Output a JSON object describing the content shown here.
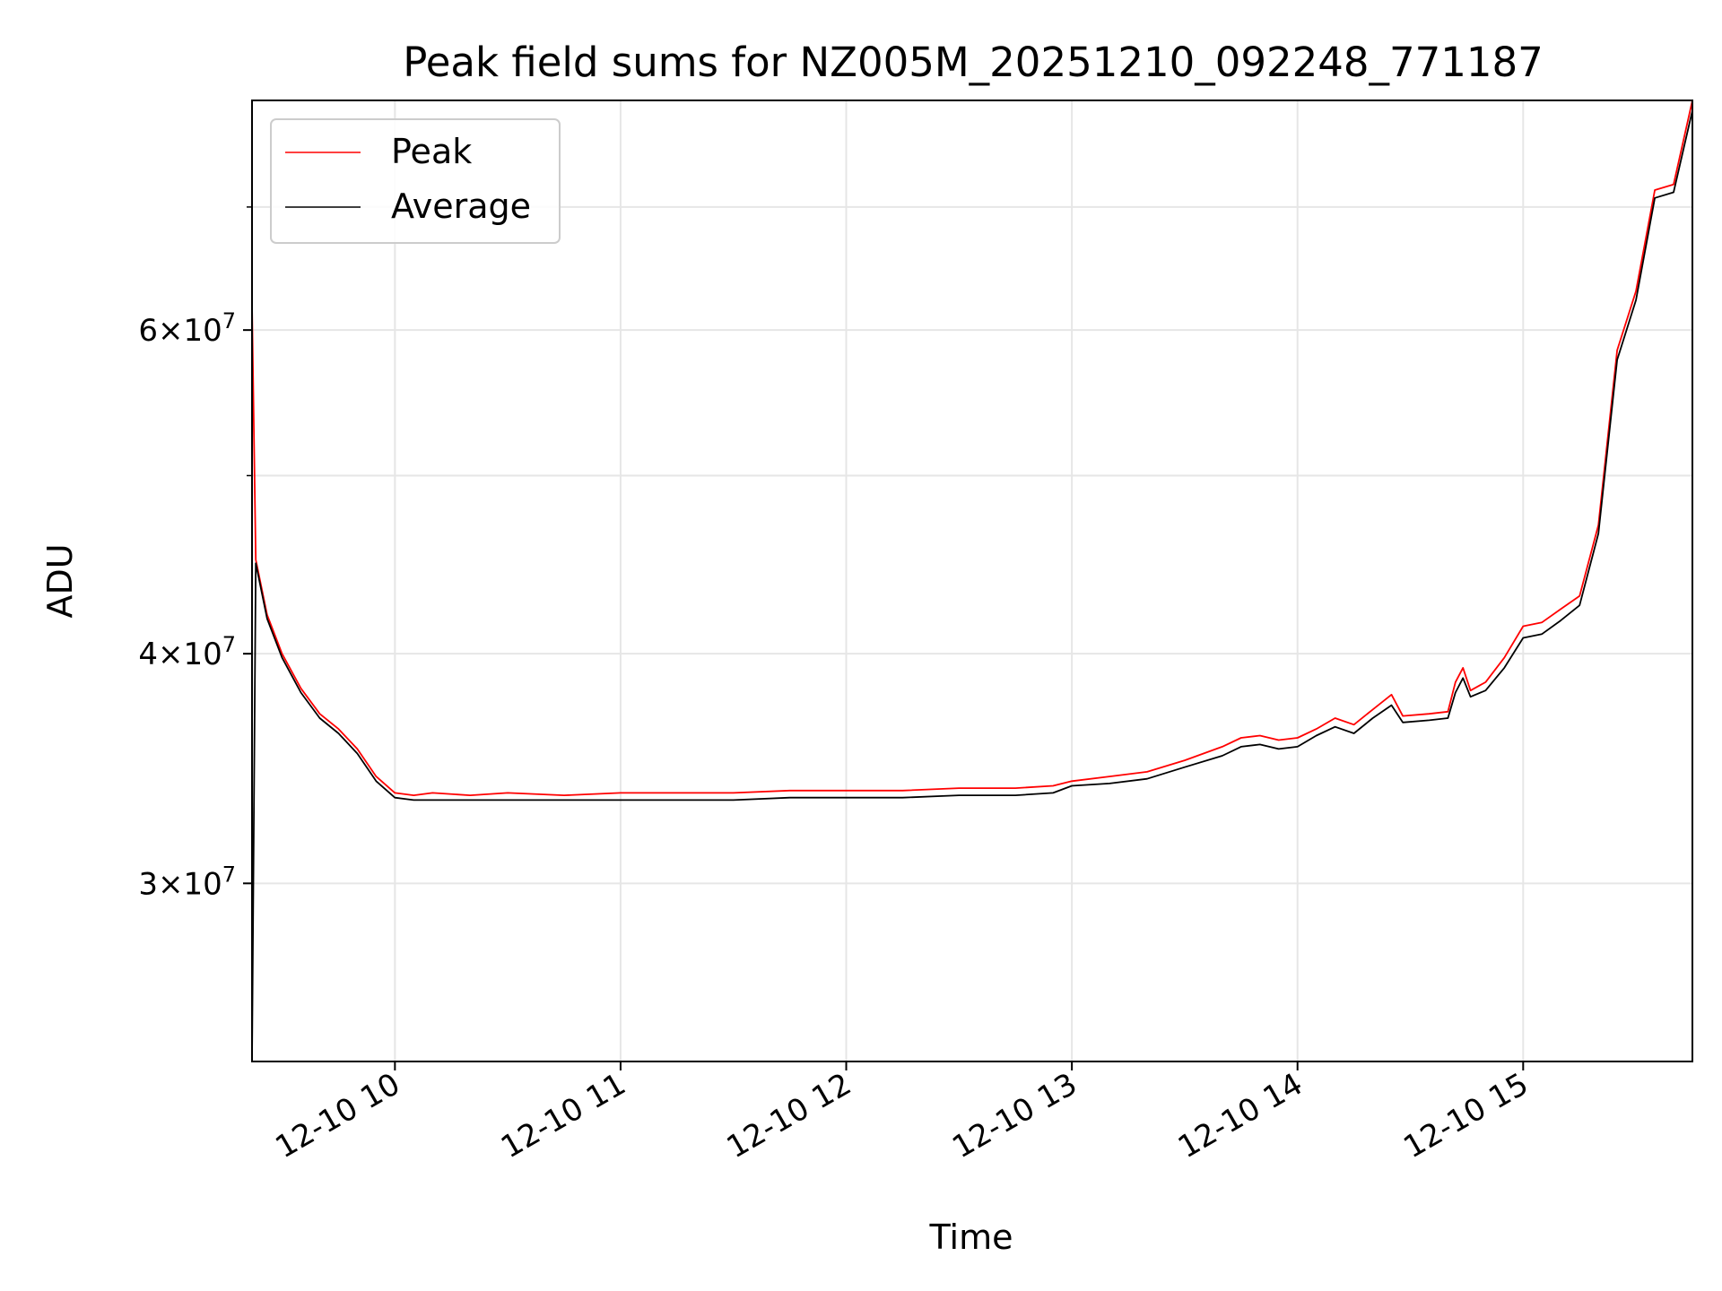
{
  "chart_data": {
    "type": "line",
    "title": "Peak field sums for NZ005M_20251210_092248_771187",
    "xlabel": "Time",
    "ylabel": "ADU",
    "x_scale": "time",
    "y_scale": "log",
    "xlim": [
      "2025-12-10 09:22",
      "2025-12-10 15:45"
    ],
    "ylim": [
      24000000,
      80000000
    ],
    "grid": true,
    "legend_position": "upper-left",
    "x_ticks": [
      {
        "value": "2025-12-10 10:00",
        "label": "12-10 10"
      },
      {
        "value": "2025-12-10 11:00",
        "label": "12-10 11"
      },
      {
        "value": "2025-12-10 12:00",
        "label": "12-10 12"
      },
      {
        "value": "2025-12-10 13:00",
        "label": "12-10 13"
      },
      {
        "value": "2025-12-10 14:00",
        "label": "12-10 14"
      },
      {
        "value": "2025-12-10 15:00",
        "label": "12-10 15"
      }
    ],
    "y_ticks": [
      {
        "value": 30000000,
        "mantissa": "3",
        "base": "10",
        "exponent": "7"
      },
      {
        "value": 40000000,
        "mantissa": "4",
        "base": "10",
        "exponent": "7"
      },
      {
        "value": 60000000,
        "mantissa": "6",
        "base": "10",
        "exponent": "7"
      }
    ],
    "y_minor_ticks": [
      50000000,
      70000000
    ],
    "series": [
      {
        "name": "Peak",
        "color": "#ff0000",
        "points": [
          [
            "2025-12-10 09:22",
            62000000
          ],
          [
            "2025-12-10 09:23",
            45000000
          ],
          [
            "2025-12-10 09:26",
            42000000
          ],
          [
            "2025-12-10 09:30",
            40000000
          ],
          [
            "2025-12-10 09:35",
            38300000
          ],
          [
            "2025-12-10 09:40",
            37100000
          ],
          [
            "2025-12-10 09:45",
            36400000
          ],
          [
            "2025-12-10 09:50",
            35500000
          ],
          [
            "2025-12-10 09:55",
            34300000
          ],
          [
            "2025-12-10 10:00",
            33600000
          ],
          [
            "2025-12-10 10:05",
            33500000
          ],
          [
            "2025-12-10 10:10",
            33600000
          ],
          [
            "2025-12-10 10:20",
            33500000
          ],
          [
            "2025-12-10 10:30",
            33600000
          ],
          [
            "2025-12-10 10:45",
            33500000
          ],
          [
            "2025-12-10 11:00",
            33600000
          ],
          [
            "2025-12-10 11:15",
            33600000
          ],
          [
            "2025-12-10 11:30",
            33600000
          ],
          [
            "2025-12-10 11:45",
            33700000
          ],
          [
            "2025-12-10 12:00",
            33700000
          ],
          [
            "2025-12-10 12:15",
            33700000
          ],
          [
            "2025-12-10 12:30",
            33800000
          ],
          [
            "2025-12-10 12:45",
            33800000
          ],
          [
            "2025-12-10 12:55",
            33900000
          ],
          [
            "2025-12-10 13:00",
            34100000
          ],
          [
            "2025-12-10 13:10",
            34300000
          ],
          [
            "2025-12-10 13:20",
            34500000
          ],
          [
            "2025-12-10 13:30",
            35000000
          ],
          [
            "2025-12-10 13:40",
            35600000
          ],
          [
            "2025-12-10 13:45",
            36000000
          ],
          [
            "2025-12-10 13:50",
            36100000
          ],
          [
            "2025-12-10 13:55",
            35900000
          ],
          [
            "2025-12-10 14:00",
            36000000
          ],
          [
            "2025-12-10 14:05",
            36400000
          ],
          [
            "2025-12-10 14:10",
            36900000
          ],
          [
            "2025-12-10 14:15",
            36600000
          ],
          [
            "2025-12-10 14:20",
            37300000
          ],
          [
            "2025-12-10 14:25",
            38000000
          ],
          [
            "2025-12-10 14:28",
            37000000
          ],
          [
            "2025-12-10 14:35",
            37100000
          ],
          [
            "2025-12-10 14:40",
            37200000
          ],
          [
            "2025-12-10 14:42",
            38600000
          ],
          [
            "2025-12-10 14:44",
            39300000
          ],
          [
            "2025-12-10 14:46",
            38200000
          ],
          [
            "2025-12-10 14:50",
            38600000
          ],
          [
            "2025-12-10 14:55",
            39800000
          ],
          [
            "2025-12-10 15:00",
            41400000
          ],
          [
            "2025-12-10 15:05",
            41600000
          ],
          [
            "2025-12-10 15:10",
            42300000
          ],
          [
            "2025-12-10 15:15",
            43000000
          ],
          [
            "2025-12-10 15:20",
            47000000
          ],
          [
            "2025-12-10 15:25",
            58500000
          ],
          [
            "2025-12-10 15:30",
            63000000
          ],
          [
            "2025-12-10 15:35",
            71500000
          ],
          [
            "2025-12-10 15:40",
            72000000
          ],
          [
            "2025-12-10 15:45",
            80000000
          ]
        ]
      },
      {
        "name": "Average",
        "color": "#000000",
        "points": [
          [
            "2025-12-10 09:22",
            24000000
          ],
          [
            "2025-12-10 09:23",
            44800000
          ],
          [
            "2025-12-10 09:26",
            41800000
          ],
          [
            "2025-12-10 09:30",
            39800000
          ],
          [
            "2025-12-10 09:35",
            38100000
          ],
          [
            "2025-12-10 09:40",
            36900000
          ],
          [
            "2025-12-10 09:45",
            36200000
          ],
          [
            "2025-12-10 09:50",
            35300000
          ],
          [
            "2025-12-10 09:55",
            34100000
          ],
          [
            "2025-12-10 10:00",
            33400000
          ],
          [
            "2025-12-10 10:05",
            33300000
          ],
          [
            "2025-12-10 10:10",
            33300000
          ],
          [
            "2025-12-10 10:20",
            33300000
          ],
          [
            "2025-12-10 10:30",
            33300000
          ],
          [
            "2025-12-10 10:45",
            33300000
          ],
          [
            "2025-12-10 11:00",
            33300000
          ],
          [
            "2025-12-10 11:15",
            33300000
          ],
          [
            "2025-12-10 11:30",
            33300000
          ],
          [
            "2025-12-10 11:45",
            33400000
          ],
          [
            "2025-12-10 12:00",
            33400000
          ],
          [
            "2025-12-10 12:15",
            33400000
          ],
          [
            "2025-12-10 12:30",
            33500000
          ],
          [
            "2025-12-10 12:45",
            33500000
          ],
          [
            "2025-12-10 12:55",
            33600000
          ],
          [
            "2025-12-10 13:00",
            33900000
          ],
          [
            "2025-12-10 13:10",
            34000000
          ],
          [
            "2025-12-10 13:20",
            34200000
          ],
          [
            "2025-12-10 13:30",
            34700000
          ],
          [
            "2025-12-10 13:40",
            35200000
          ],
          [
            "2025-12-10 13:45",
            35600000
          ],
          [
            "2025-12-10 13:50",
            35700000
          ],
          [
            "2025-12-10 13:55",
            35500000
          ],
          [
            "2025-12-10 14:00",
            35600000
          ],
          [
            "2025-12-10 14:05",
            36100000
          ],
          [
            "2025-12-10 14:10",
            36500000
          ],
          [
            "2025-12-10 14:15",
            36200000
          ],
          [
            "2025-12-10 14:20",
            36900000
          ],
          [
            "2025-12-10 14:25",
            37500000
          ],
          [
            "2025-12-10 14:28",
            36700000
          ],
          [
            "2025-12-10 14:35",
            36800000
          ],
          [
            "2025-12-10 14:40",
            36900000
          ],
          [
            "2025-12-10 14:42",
            38100000
          ],
          [
            "2025-12-10 14:44",
            38800000
          ],
          [
            "2025-12-10 14:46",
            37900000
          ],
          [
            "2025-12-10 14:50",
            38200000
          ],
          [
            "2025-12-10 14:55",
            39300000
          ],
          [
            "2025-12-10 15:00",
            40800000
          ],
          [
            "2025-12-10 15:05",
            41000000
          ],
          [
            "2025-12-10 15:10",
            41700000
          ],
          [
            "2025-12-10 15:15",
            42500000
          ],
          [
            "2025-12-10 15:20",
            46500000
          ],
          [
            "2025-12-10 15:25",
            57800000
          ],
          [
            "2025-12-10 15:30",
            62300000
          ],
          [
            "2025-12-10 15:35",
            70800000
          ],
          [
            "2025-12-10 15:40",
            71300000
          ],
          [
            "2025-12-10 15:45",
            79000000
          ]
        ]
      }
    ]
  }
}
